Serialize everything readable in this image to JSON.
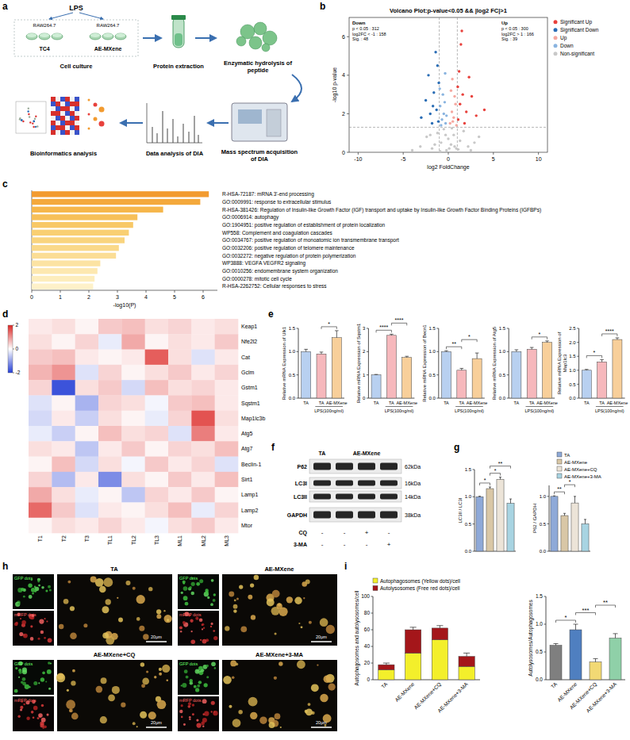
{
  "chart_data": [
    {
      "panel": "b",
      "type": "scatter",
      "title": "Volcano Plot:p-value<0.05 && |log2 FC|>1",
      "x_label": "log2 FoldChange",
      "y_label": "-log10 p-value",
      "xlim": [
        -11,
        11
      ],
      "xticks": [
        -10,
        -5,
        0,
        5,
        10
      ],
      "ylim": [
        0,
        7
      ],
      "yticks": [
        0,
        2,
        4,
        6
      ],
      "legend": "right",
      "reference_lines": {
        "x": [
          -1,
          1
        ],
        "y": [
          1.3
        ]
      },
      "annotations": [
        {
          "title": "Down",
          "lines": [
            "p < 0.05 : 312",
            "log2FC < -1 : 158",
            "Sig. : 48"
          ]
        },
        {
          "title": "Up",
          "lines": [
            "p < 0.05 : 300",
            "log2FC > 1 : 166",
            "Sig. : 39"
          ]
        }
      ],
      "series": [
        {
          "name": "Significant Up",
          "color": "#e8413c",
          "x": [
            1.1,
            1.3,
            1.6,
            2.0,
            1.2,
            1.8,
            2.6,
            1.4,
            3.1,
            1.05,
            2.3,
            4.0,
            1.5
          ],
          "values": [
            1.7,
            2.5,
            3.0,
            2.1,
            4.2,
            1.5,
            2.9,
            5.6,
            1.9,
            3.4,
            3.9,
            2.2,
            6.3
          ]
        },
        {
          "name": "Significant Down",
          "color": "#2a6db5",
          "x": [
            -1.1,
            -1.3,
            -1.6,
            -2.0,
            -1.2,
            -1.8,
            -2.5,
            -1.4,
            -3.0,
            -1.05,
            -2.2,
            -1.7
          ],
          "values": [
            1.6,
            2.2,
            3.1,
            2.0,
            4.5,
            1.5,
            2.7,
            5.2,
            1.8,
            3.6,
            4.0,
            2.4
          ]
        },
        {
          "name": "Up",
          "color": "#f5a8a0",
          "x": [
            0.2,
            0.4,
            0.6,
            0.8,
            0.3,
            0.5,
            0.7,
            0.9,
            0.45
          ],
          "values": [
            1.5,
            2.1,
            1.8,
            2.5,
            3.2,
            1.6,
            2.9,
            1.4,
            3.8
          ]
        },
        {
          "name": "Down",
          "color": "#8ab4e0",
          "x": [
            -0.3,
            -0.5,
            -0.7,
            -0.9,
            -0.2,
            -0.6,
            -0.4,
            -0.8,
            -0.95,
            -0.35
          ],
          "values": [
            1.5,
            2.0,
            1.7,
            2.4,
            1.9,
            3.0,
            2.6,
            1.4,
            3.3,
            4.1
          ]
        },
        {
          "name": "Non-significant",
          "color": "#c8c8c8",
          "x": [
            -3.1,
            -2.4,
            -1.8,
            -1.2,
            -0.8,
            -0.5,
            -0.2,
            0,
            0.3,
            0.6,
            0.9,
            1.3,
            1.7,
            2.2,
            2.9,
            -0.9,
            0.4,
            1.1,
            -1.5,
            0.7,
            -0.3,
            2.5,
            -2.0,
            0.1,
            3.4,
            -4.0
          ],
          "values": [
            0.3,
            0.8,
            0.2,
            1.0,
            0.5,
            1.2,
            0.1,
            0.7,
            0.4,
            0.9,
            0.2,
            0.6,
            1.1,
            0.3,
            0.5,
            0.05,
            1.25,
            0.15,
            0.4,
            0.3,
            0.9,
            0.1,
            0.9,
            0.2,
            0.8,
            0.1
          ]
        }
      ]
    },
    {
      "panel": "c",
      "type": "bar",
      "orientation": "horizontal",
      "x_label": "-log10(P)",
      "categories": [
        "R-HSA-72187: mRNA 3'-end processing",
        "GO:0009991: response to extracellular stimulus",
        "R-HSA-381426: Regulation of Insulin-like Growth Factor (IGF) transport and uptake by Insulin-like Growth Factor Binding Proteins (IGFBPs)",
        "GO:0006914: autophagy",
        "GO:1904951: positive regulation of establishment of protein localization",
        "WP558: Complement and coagulation cascades",
        "GO:0034767: positive regulation of monoatomic ion transmembrane transport",
        "GO:0032206: positive regulation of telomere maintenance",
        "GO:0032272: negative regulation of protein polymerization",
        "WP3888: VEGFA VEGFR2 signaling",
        "GO:0010256: endomembrane system organization",
        "GO:0000278: mitotic cell cycle",
        "R-HSA-2262752: Cellular responses to stress"
      ],
      "values": [
        6.2,
        5.9,
        4.6,
        3.7,
        3.55,
        3.4,
        3.25,
        3.05,
        2.95,
        2.4,
        2.3,
        2.2,
        2.15
      ],
      "colors": [
        "#f29b30",
        "#f4a93c",
        "#f6b64a",
        "#f7c059",
        "#f8c866",
        "#f9cf72",
        "#f9d47e",
        "#fad98a",
        "#fbdd95",
        "#fce3a3",
        "#fde8b0",
        "#fdedbd",
        "#fef1c9"
      ],
      "xlim": [
        0,
        6.5
      ],
      "xticks": [
        0,
        1,
        2,
        3,
        4,
        5,
        6
      ]
    },
    {
      "panel": "d",
      "type": "heatmap",
      "rows": [
        "Keap1",
        "Nfe2l2",
        "Cat",
        "Gclm",
        "Gstm1",
        "Sqstm1",
        "Map1lc3b",
        "Atg5",
        "Atg7",
        "Beclin-1",
        "Sirt1",
        "Lamp1",
        "Lamp2",
        "Mtor"
      ],
      "columns": [
        "T1",
        "T2",
        "T3",
        "TL1",
        "TL2",
        "TL3",
        "ML1",
        "ML2",
        "ML3"
      ],
      "cells": [
        [
          0.2,
          0.3,
          0.1,
          0.5,
          0.6,
          0.3,
          0.4,
          0.2,
          0.3
        ],
        [
          0.3,
          0.1,
          0.4,
          -0.2,
          0.8,
          0.1,
          0.3,
          0.2,
          0.5
        ],
        [
          0.5,
          0.6,
          0.2,
          0.1,
          0.2,
          1.5,
          0.3,
          -0.3,
          0.2
        ],
        [
          0.7,
          1.0,
          -0.3,
          0.4,
          0.1,
          0.3,
          0.5,
          0.2,
          0.4
        ],
        [
          0.4,
          -1.8,
          0.3,
          0.5,
          -0.4,
          0.6,
          0.3,
          0.4,
          0.2
        ],
        [
          -0.3,
          0.1,
          -0.8,
          0.4,
          0.3,
          -0.1,
          0.5,
          0.6,
          0.2
        ],
        [
          -0.4,
          0.2,
          -0.5,
          0.3,
          0.1,
          -0.2,
          0.4,
          1.6,
          0.3
        ],
        [
          -0.2,
          -0.5,
          0.1,
          0.6,
          0.3,
          0.4,
          -0.3,
          1.2,
          0.2
        ],
        [
          0.3,
          0.2,
          -0.6,
          0.2,
          0.5,
          0.1,
          0.4,
          0.3,
          0.6
        ],
        [
          0.1,
          0.6,
          -0.4,
          0.3,
          -0.1,
          0.5,
          0.2,
          0.4,
          -0.3
        ],
        [
          0.4,
          -0.7,
          0.2,
          -1.2,
          0.3,
          0.1,
          0.5,
          0.2,
          0.6
        ],
        [
          0.8,
          0.3,
          -0.2,
          0.1,
          -0.6,
          0.4,
          0.2,
          0.5,
          0.1
        ],
        [
          1.4,
          0.5,
          -0.3,
          0.2,
          0.1,
          0.3,
          0.6,
          -0.2,
          0.4
        ],
        [
          0.1,
          0.3,
          0.2,
          0.4,
          0.2,
          -0.1,
          0.3,
          0.5,
          0.2
        ]
      ],
      "zlim": [
        -2,
        2
      ],
      "zticks": [
        -2,
        0,
        2
      ]
    },
    {
      "panel": "e",
      "type": "bar",
      "y_label": "Relative mRNA Expression of Ulk1",
      "categories": [
        "TA",
        "TA",
        "AE-MXene"
      ],
      "group_label": "LPS(100ng/ml)",
      "group_span": [
        1,
        2
      ],
      "values": [
        1.0,
        0.95,
        1.3
      ],
      "errors": [
        0.05,
        0.04,
        0.15
      ],
      "colors": [
        "#b8d0f0",
        "#f6b8bc",
        "#f8cf9a"
      ],
      "ylim": [
        0,
        1.5
      ],
      "yticks": [
        {
          "value": 0,
          "label": "0.0"
        },
        {
          "value": 0.5,
          "label": "0.5"
        },
        {
          "value": 1,
          "label": "1.0"
        },
        {
          "value": 1.5,
          "label": "1.5"
        }
      ],
      "significance": [
        {
          "pair": [
            1,
            2
          ],
          "label": "*"
        }
      ]
    },
    {
      "type": "bar",
      "y_label": "Relative mRNA Expression of Sqstm1",
      "categories": [
        "TA",
        "TA",
        "AE-MXene"
      ],
      "group_label": "LPS(100ng/ml)",
      "group_span": [
        1,
        2
      ],
      "values": [
        1.0,
        2.7,
        1.75
      ],
      "errors": [
        0.02,
        0.05,
        0.05
      ],
      "colors": [
        "#b8d0f0",
        "#f6b8bc",
        "#f8cf9a"
      ],
      "ylim": [
        0,
        3
      ],
      "yticks": [
        0,
        1,
        2,
        3
      ],
      "significance": [
        {
          "pair": [
            0,
            1
          ],
          "label": "****"
        },
        {
          "pair": [
            1,
            2
          ],
          "label": "****"
        }
      ]
    },
    {
      "type": "bar",
      "y_label": "Relative mRNA Expression of Becn1",
      "categories": [
        "TA",
        "TA",
        "AE-MXene"
      ],
      "group_label": "LPS(100ng/ml)",
      "group_span": [
        1,
        2
      ],
      "values": [
        1.0,
        0.6,
        0.85
      ],
      "errors": [
        0.02,
        0.04,
        0.12
      ],
      "colors": [
        "#b8d0f0",
        "#f6b8bc",
        "#f8cf9a"
      ],
      "ylim": [
        0,
        1.5
      ],
      "yticks": [
        {
          "value": 0,
          "label": "0.0"
        },
        {
          "value": 0.5,
          "label": "0.5"
        },
        {
          "value": 1,
          "label": "1.0"
        },
        {
          "value": 1.5,
          "label": "1.5"
        }
      ],
      "significance": [
        {
          "pair": [
            0,
            1
          ],
          "label": "**"
        },
        {
          "pair": [
            1,
            2
          ],
          "label": "*"
        }
      ]
    },
    {
      "type": "bar",
      "y_label": "Relative mRNA Expression of Atg5",
      "categories": [
        "TA",
        "TA",
        "AE-MXene"
      ],
      "group_label": "LPS(100ng/ml)",
      "group_span": [
        1,
        2
      ],
      "values": [
        1.0,
        1.05,
        1.2
      ],
      "errors": [
        0.04,
        0.04,
        0.03
      ],
      "colors": [
        "#b8d0f0",
        "#f6b8bc",
        "#f8cf9a"
      ],
      "ylim": [
        0,
        1.5
      ],
      "yticks": [
        {
          "value": 0,
          "label": "0.0"
        },
        {
          "value": 0.5,
          "label": "0.5"
        },
        {
          "value": 1,
          "label": "1.0"
        },
        {
          "value": 1.5,
          "label": "1.5"
        }
      ],
      "significance": [
        {
          "pair": [
            1,
            2
          ],
          "label": "*"
        }
      ]
    },
    {
      "type": "bar",
      "y_label": "Relative mRNA Expression of Map1lc3",
      "categories": [
        "TA",
        "TA",
        "AE-MXene"
      ],
      "group_label": "LPS(100ng/ml)",
      "group_span": [
        1,
        2
      ],
      "values": [
        1.0,
        1.3,
        2.1
      ],
      "errors": [
        0.03,
        0.08,
        0.06
      ],
      "colors": [
        "#b8d0f0",
        "#f6b8bc",
        "#f8cf9a"
      ],
      "ylim": [
        0,
        2.5
      ],
      "yticks": [
        {
          "value": 0,
          "label": "0.0"
        },
        {
          "value": 0.5,
          "label": "0.5"
        },
        {
          "value": 1,
          "label": "1.0"
        },
        {
          "value": 1.5,
          "label": "1.5"
        },
        {
          "value": 2,
          "label": "2.0"
        },
        {
          "value": 2.5,
          "label": "2.5"
        }
      ],
      "significance": [
        {
          "pair": [
            0,
            1
          ],
          "label": "*"
        },
        {
          "pair": [
            1,
            2
          ],
          "label": "****"
        }
      ]
    },
    {
      "panel": "g",
      "type": "bar",
      "y_label": "LC3II / LC3I",
      "tick_labels": "y",
      "values": [
        1.0,
        1.15,
        1.32,
        0.88
      ],
      "errors": [
        0.01,
        0.03,
        0.04,
        0.08
      ],
      "colors": [
        "#8ea9d8",
        "#d9c7a6",
        "#ece4d8",
        "#a8d4e2"
      ],
      "ylim": [
        0,
        1.5
      ],
      "yticks": [
        {
          "value": 0,
          "label": "0.0"
        },
        {
          "value": 0.5,
          "label": "0.5"
        },
        {
          "value": 1,
          "label": "1.0"
        },
        {
          "value": 1.5,
          "label": "1.5"
        }
      ],
      "significance": [
        {
          "pair": [
            0,
            1
          ],
          "label": "*"
        },
        {
          "pair": [
            1,
            2
          ],
          "label": "*"
        },
        {
          "pair": [
            1,
            3
          ],
          "label": "**"
        }
      ]
    },
    {
      "type": "bar",
      "y_label": "P62 / GAPDH",
      "tick_labels": "y",
      "legend": "top-right",
      "categories": [
        "TA",
        "AE-MXene",
        "AE-MXene+CQ",
        "AE-MXene+3-MA"
      ],
      "values": [
        1.0,
        0.65,
        0.88,
        0.5
      ],
      "errors": [
        0.01,
        0.04,
        0.12,
        0.08
      ],
      "colors": [
        "#8ea9d8",
        "#d9c7a6",
        "#ece4d8",
        "#a8d4e2"
      ],
      "ylim": [
        0,
        1.2
      ],
      "yticks": [
        {
          "value": 0,
          "label": "0.0"
        },
        {
          "value": 0.5,
          "label": "0.5"
        },
        {
          "value": 1,
          "label": "1.0"
        }
      ],
      "significance": [
        {
          "pair": [
            0,
            1
          ],
          "label": "**"
        },
        {
          "pair": [
            1,
            2
          ],
          "label": "*"
        }
      ]
    },
    {
      "panel": "i",
      "type": "bar",
      "stacked": true,
      "legend": "top",
      "y_label": "Autophagosomes and autolysosomes/cell",
      "categories": [
        "TA",
        "AE-MXene",
        "AE-MXene+CQ",
        "AE-MXene+3-MA"
      ],
      "series": [
        {
          "name": "Autophagosomes (Yellow dots)/cell",
          "color": "#f3ef2b",
          "values": [
            12,
            32,
            48,
            16
          ],
          "errors": [
            2,
            3,
            3,
            3
          ]
        },
        {
          "name": "Autolysosomes (Free red dots)/cell",
          "color": "#a4161a",
          "values": [
            6,
            28,
            14,
            12
          ],
          "errors": [
            2,
            3,
            3,
            4
          ]
        }
      ],
      "ylim": [
        0,
        100
      ],
      "yticks": [
        0,
        20,
        40,
        60,
        80,
        100
      ]
    },
    {
      "type": "bar",
      "y_label": "Autolysosomes/Autophagosomes",
      "categories": [
        "TA",
        "AE-MXene",
        "AE-MXene+CQ",
        "AE-MXene+3-MA"
      ],
      "values": [
        0.62,
        0.9,
        0.32,
        0.75
      ],
      "errors": [
        0.03,
        0.1,
        0.06,
        0.08
      ],
      "colors": [
        "#7f7f7f",
        "#4f7fc0",
        "#f2d974",
        "#8fd0a8"
      ],
      "ylim": [
        0,
        1.5
      ],
      "yticks": [
        {
          "value": 0,
          "label": "0.0"
        },
        {
          "value": 0.5,
          "label": "0.5"
        },
        {
          "value": 1,
          "label": "1.0"
        },
        {
          "value": 1.5,
          "label": "1.5"
        }
      ],
      "significance": [
        {
          "pair": [
            0,
            1
          ],
          "label": "*"
        },
        {
          "pair": [
            1,
            2
          ],
          "label": "***"
        },
        {
          "pair": [
            2,
            3
          ],
          "label": "**"
        }
      ]
    }
  ],
  "workflow": {
    "panel": "a",
    "stimulus": "LPS",
    "cell_line": "RAW264.7",
    "groups": [
      "TC4",
      "AE-MXene"
    ],
    "steps": [
      "Cell culture",
      "Protein extraction",
      "Enzymatic hydrolysis of peptide",
      "Mass spectrum acquisition of DIA",
      "Data analysis of DIA",
      "Bioinformatics analysis"
    ]
  },
  "blot": {
    "panel": "f",
    "groups": [
      {
        "label": "TA",
        "lanes": 1
      },
      {
        "label": "AE-MXene",
        "lanes": 3
      }
    ],
    "bands": [
      {
        "name": "P62",
        "size": "62kDa"
      },
      {
        "name": "LC3I",
        "size": "16kDa"
      },
      {
        "name": "LC3II",
        "size": "14kDa"
      },
      {
        "name": "GAPDH",
        "size": "38kDa"
      }
    ],
    "treatments": [
      {
        "name": "CQ",
        "marks": [
          "-",
          "-",
          "+",
          "-"
        ]
      },
      {
        "name": "3-MA",
        "marks": [
          "-",
          "-",
          "-",
          "+"
        ]
      }
    ]
  },
  "images": {
    "panel": "h",
    "groups": [
      "TA",
      "AE-MXene",
      "AE-MXene+CQ",
      "AE-MXene+3-MA"
    ],
    "channels": [
      "GFP dots",
      "mRFP dots"
    ],
    "scale_bar": "20μm"
  }
}
